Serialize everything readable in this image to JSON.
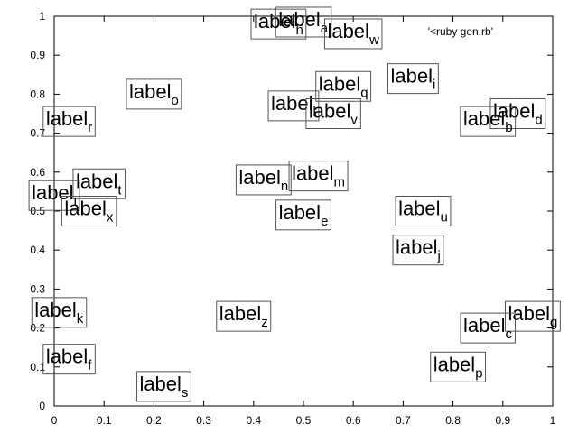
{
  "chart_data": {
    "type": "scatter",
    "title": "",
    "xlabel": "",
    "ylabel": "",
    "xlim": [
      0,
      1
    ],
    "ylim": [
      0,
      1
    ],
    "grid": false,
    "legend_position": "top-right",
    "x_ticks": [
      "0",
      "0.1",
      "0.2",
      "0.3",
      "0.4",
      "0.5",
      "0.6",
      "0.7",
      "0.8",
      "0.9",
      "1"
    ],
    "y_ticks": [
      "0",
      "0.1",
      "0.2",
      "0.3",
      "0.4",
      "0.5",
      "0.6",
      "0.7",
      "0.8",
      "0.9",
      "1"
    ],
    "series": [
      {
        "name": "'<ruby gen.rb'",
        "style": "labels",
        "points": [
          {
            "label": "label",
            "sub": "a",
            "x": 0.5,
            "y": 0.985
          },
          {
            "label": "label",
            "sub": "h",
            "x": 0.45,
            "y": 0.98
          },
          {
            "label": "label",
            "sub": "w",
            "x": 0.6,
            "y": 0.955
          },
          {
            "label": "label",
            "sub": "i",
            "x": 0.72,
            "y": 0.84
          },
          {
            "label": "label",
            "sub": "q",
            "x": 0.58,
            "y": 0.82
          },
          {
            "label": "label",
            "sub": "o",
            "x": 0.2,
            "y": 0.8
          },
          {
            "label": "label",
            "sub": "l",
            "x": 0.48,
            "y": 0.77
          },
          {
            "label": "label",
            "sub": "v",
            "x": 0.56,
            "y": 0.75
          },
          {
            "label": "label",
            "sub": "d",
            "x": 0.93,
            "y": 0.75
          },
          {
            "label": "label",
            "sub": "b",
            "x": 0.87,
            "y": 0.73
          },
          {
            "label": "label",
            "sub": "r",
            "x": 0.03,
            "y": 0.73
          },
          {
            "label": "label",
            "sub": "n",
            "x": 0.42,
            "y": 0.58
          },
          {
            "label": "label",
            "sub": "m",
            "x": 0.53,
            "y": 0.59
          },
          {
            "label": "label",
            "sub": "t",
            "x": 0.09,
            "y": 0.57
          },
          {
            "label": "label",
            "sub": "i",
            "x": 0.0,
            "y": 0.54
          },
          {
            "label": "label",
            "sub": "x",
            "x": 0.07,
            "y": 0.5
          },
          {
            "label": "label",
            "sub": "e",
            "x": 0.5,
            "y": 0.49
          },
          {
            "label": "label",
            "sub": "u",
            "x": 0.74,
            "y": 0.5
          },
          {
            "label": "label",
            "sub": "j",
            "x": 0.73,
            "y": 0.4
          },
          {
            "label": "label",
            "sub": "k",
            "x": 0.01,
            "y": 0.24
          },
          {
            "label": "label",
            "sub": "z",
            "x": 0.38,
            "y": 0.23
          },
          {
            "label": "label",
            "sub": "g",
            "x": 0.96,
            "y": 0.23
          },
          {
            "label": "label",
            "sub": "c",
            "x": 0.87,
            "y": 0.2
          },
          {
            "label": "label",
            "sub": "f",
            "x": 0.03,
            "y": 0.12
          },
          {
            "label": "label",
            "sub": "p",
            "x": 0.81,
            "y": 0.1
          },
          {
            "label": "label",
            "sub": "s",
            "x": 0.22,
            "y": 0.05
          }
        ]
      }
    ]
  }
}
